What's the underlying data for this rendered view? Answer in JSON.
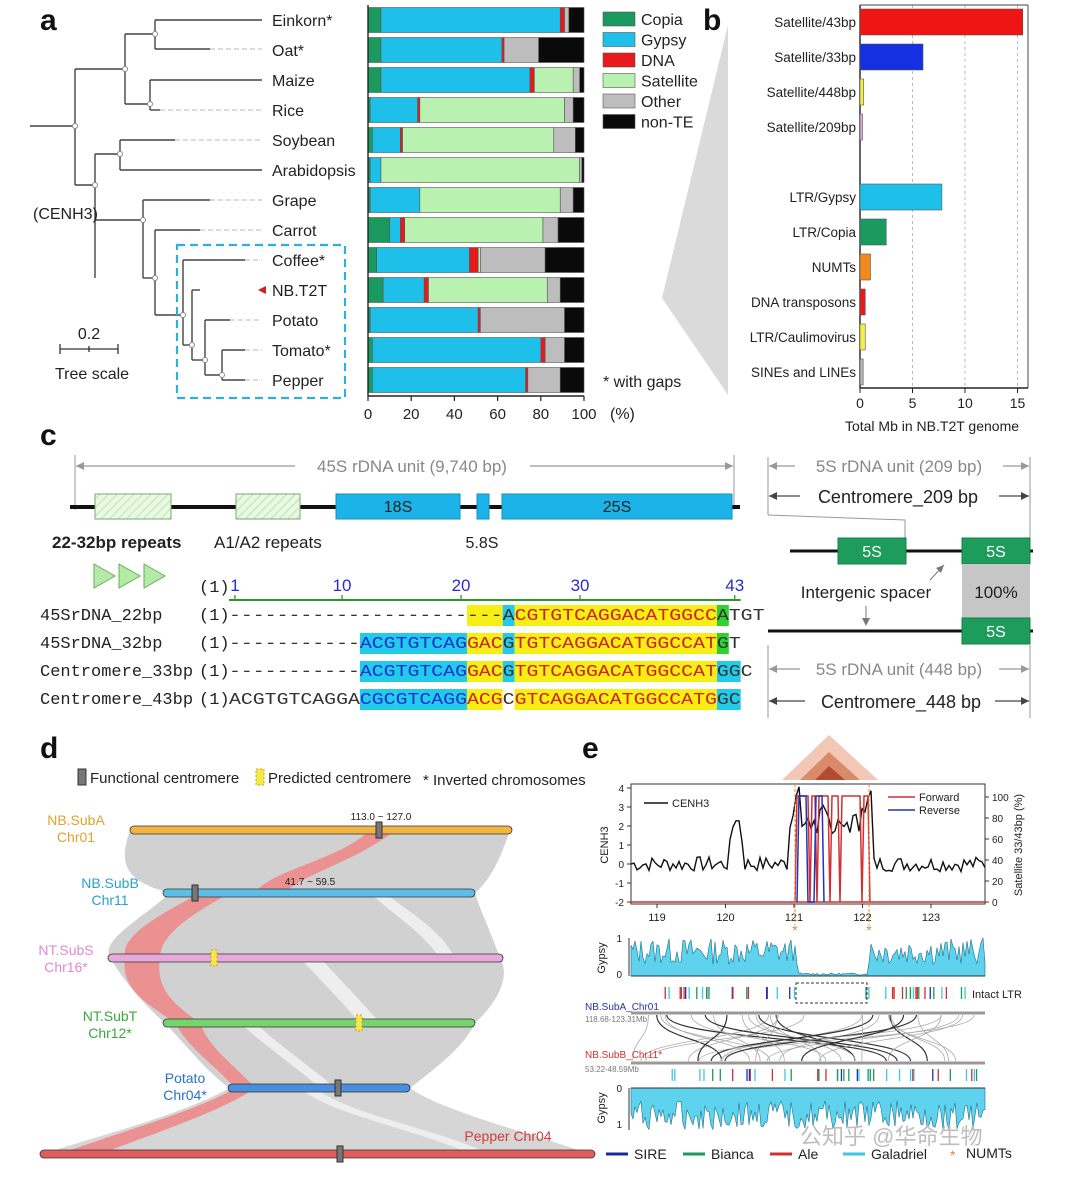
{
  "panels": {
    "a": "a",
    "b": "b",
    "c": "c",
    "d": "d",
    "e": "e"
  },
  "colors": {
    "copia": "#1a9a5e",
    "gypsy": "#1ec0ea",
    "dna": "#e8191b",
    "satellite": "#b9f2b0",
    "other": "#bdbdbd",
    "nonte": "#0a0a0a",
    "sat43": "#f01515",
    "sat33": "#1530e0",
    "sat448": "#f4ef48",
    "numt": "#f08a1e",
    "rdna": "#1cb4e8",
    "green5s": "#1d9c5c",
    "align_yellow": "#f7ee15",
    "align_cyan": "#22cbea",
    "align_green": "#2ed22e",
    "subA": "#f3b541",
    "subB": "#5bbfe5",
    "subS": "#e6a9dc",
    "subT": "#77d36b",
    "potato": "#4a8ee0",
    "pepper": "#e25d5d",
    "ribbon_grey": "#c8c8c8",
    "ribbon_red": "#ea8c8c"
  },
  "panel_a": {
    "root_label": "(CENH3)",
    "scale_value": "0.2",
    "scale_caption": "Tree scale",
    "gaps_note": "* with gaps",
    "x_unit": "(%)",
    "x_ticks": [
      "0",
      "20",
      "40",
      "60",
      "80",
      "100"
    ],
    "legend": [
      {
        "name": "Copia",
        "color": "#1a9a5e"
      },
      {
        "name": "Gypsy",
        "color": "#1ec0ea"
      },
      {
        "name": "DNA",
        "color": "#e8191b"
      },
      {
        "name": "Satellite",
        "color": "#b9f2b0"
      },
      {
        "name": "Other",
        "color": "#bdbdbd"
      },
      {
        "name": "non-TE",
        "color": "#0a0a0a"
      }
    ]
  },
  "chart_data": [
    {
      "type": "bar",
      "orientation": "horizontal-stacked",
      "xlabel": "(%)",
      "xlim": [
        0,
        100
      ],
      "categories": [
        "Einkorn*",
        "Oat*",
        "Maize",
        "Rice",
        "Soybean",
        "Arabidopsis",
        "Grape",
        "Carrot",
        "Coffee*",
        "NB.T2T",
        "Potato",
        "Tomato*",
        "Pepper"
      ],
      "series": [
        {
          "name": "Copia",
          "values": [
            6,
            6,
            6,
            1,
            2,
            1,
            1,
            10,
            4,
            7,
            1,
            2,
            2
          ]
        },
        {
          "name": "Gypsy",
          "values": [
            83,
            56,
            69,
            22,
            13,
            5,
            23,
            5,
            43,
            19,
            50,
            78,
            71
          ]
        },
        {
          "name": "DNA",
          "values": [
            2,
            1,
            2,
            1,
            1,
            0,
            0,
            2,
            4,
            2,
            1,
            2,
            1
          ]
        },
        {
          "name": "Satellite",
          "values": [
            0,
            0,
            18,
            67,
            70,
            92,
            65,
            64,
            1,
            55,
            0,
            0,
            0
          ]
        },
        {
          "name": "Other",
          "values": [
            2,
            16,
            3,
            4,
            10,
            1,
            6,
            7,
            30,
            6,
            39,
            9,
            15
          ]
        },
        {
          "name": "non-TE",
          "values": [
            7,
            21,
            2,
            5,
            4,
            1,
            5,
            12,
            18,
            11,
            9,
            9,
            11
          ]
        }
      ]
    },
    {
      "type": "bar",
      "orientation": "horizontal",
      "xlabel": "Total Mb in NB.T2T genome",
      "xlim": [
        0,
        16
      ],
      "x_ticks": [
        "0",
        "5",
        "10",
        "15"
      ],
      "categories": [
        "Satellite/43bp",
        "Satellite/33bp",
        "Satellite/448bp",
        "Satellite/209bp",
        "",
        "LTR/Gypsy",
        "LTR/Copia",
        "NUMTs",
        "DNA transposons",
        "LTR/Caulimovirus",
        "SINEs and LINEs"
      ],
      "values": [
        15.5,
        6.0,
        0.35,
        0.15,
        null,
        7.8,
        2.5,
        1.0,
        0.5,
        0.5,
        0.3
      ]
    },
    {
      "type": "line",
      "x_ticks": [
        "119",
        "120",
        "121",
        "122",
        "123"
      ],
      "ylabel": "CENH3",
      "y_ticks": [
        "-2",
        "-1",
        "0",
        "1",
        "2",
        "3",
        "4"
      ],
      "y2label": "Satellite 33/43bp (%)",
      "y2_ticks": [
        "0",
        "20",
        "40",
        "60",
        "80",
        "100"
      ],
      "series": [
        {
          "name": "CENH3"
        },
        {
          "name": "Forward"
        },
        {
          "name": "Reverse"
        }
      ]
    }
  ],
  "panel_c": {
    "unit45": "45S rDNA unit (9,740 bp)",
    "r18": "18S",
    "r58": "5.8S",
    "r25": "25S",
    "repeats_bold": "22-32bp repeats",
    "repeats_a": "A1/A2 repeats",
    "unit5_top": "5S rDNA unit (209 bp)",
    "cent209": "Centromere_209 bp",
    "five_s": "5S",
    "spacer": "Intergenic spacer",
    "identity": "100%",
    "unit5_bot": "5S rDNA unit (448 bp)",
    "cent448": "Centromere_448 bp",
    "ruler": [
      "1",
      "10",
      "20",
      "30",
      "43"
    ],
    "ruler_start": "(1)",
    "rows": [
      {
        "name": "45SrDNA_22bp",
        "start": "(1)",
        "seq": "-----------------------ACGTGTCAGGACATGGCCATGT"
      },
      {
        "name": "45SrDNA_32bp",
        "start": "(1)",
        "seq": "-----------ACGTGTCAGGACGTGTCAGGACATGGCCATGT"
      },
      {
        "name": "Centromere_33bp",
        "start": "(1)",
        "seq": "-----------ACGTGTCAGGACGTGTCAGGACATGGCCATGGC"
      },
      {
        "name": "Centromere_43bp",
        "start": "(1)",
        "seq": "ACGTGTCAGGACGCGTCAGGACGCGTCAGGACATGGCCATGGC"
      }
    ]
  },
  "panel_d": {
    "legend_func": "Functional centromere",
    "legend_pred": "Predicted centromere",
    "legend_inv": "* Inverted chromosomes",
    "chroms": [
      {
        "name1": "NB.SubA",
        "name2": "Chr01"
      },
      {
        "name1": "NB.SubB",
        "name2": "Chr11"
      },
      {
        "name1": "NT.SubS",
        "name2": "Chr16*"
      },
      {
        "name1": "NT.SubT",
        "name2": "Chr12*"
      },
      {
        "name1": "Potato",
        "name2": "Chr04*"
      }
    ],
    "pepper": "Pepper  Chr04",
    "range_a": "113.0 ~ 127.0",
    "range_b": "41.7 ~ 59.5"
  },
  "panel_e": {
    "cenh3": "CENH3",
    "forward": "Forward",
    "reverse": "Reverse",
    "gypsy": "Gypsy",
    "gypsy_ticks": [
      "0",
      "1"
    ],
    "intact": "Intact LTR",
    "suba": "NB.SubA_Chr01",
    "suba_range": "118.68-123.31Mb",
    "subb": "NB.SubB_Chr11*",
    "subb_range": "53.22-48.59Mb",
    "legend": [
      "SIRE",
      "Bianca",
      "Ale",
      "Galadriel",
      "NUMTs"
    ],
    "star": "*"
  },
  "watermark": "公知乎 @华命生物"
}
